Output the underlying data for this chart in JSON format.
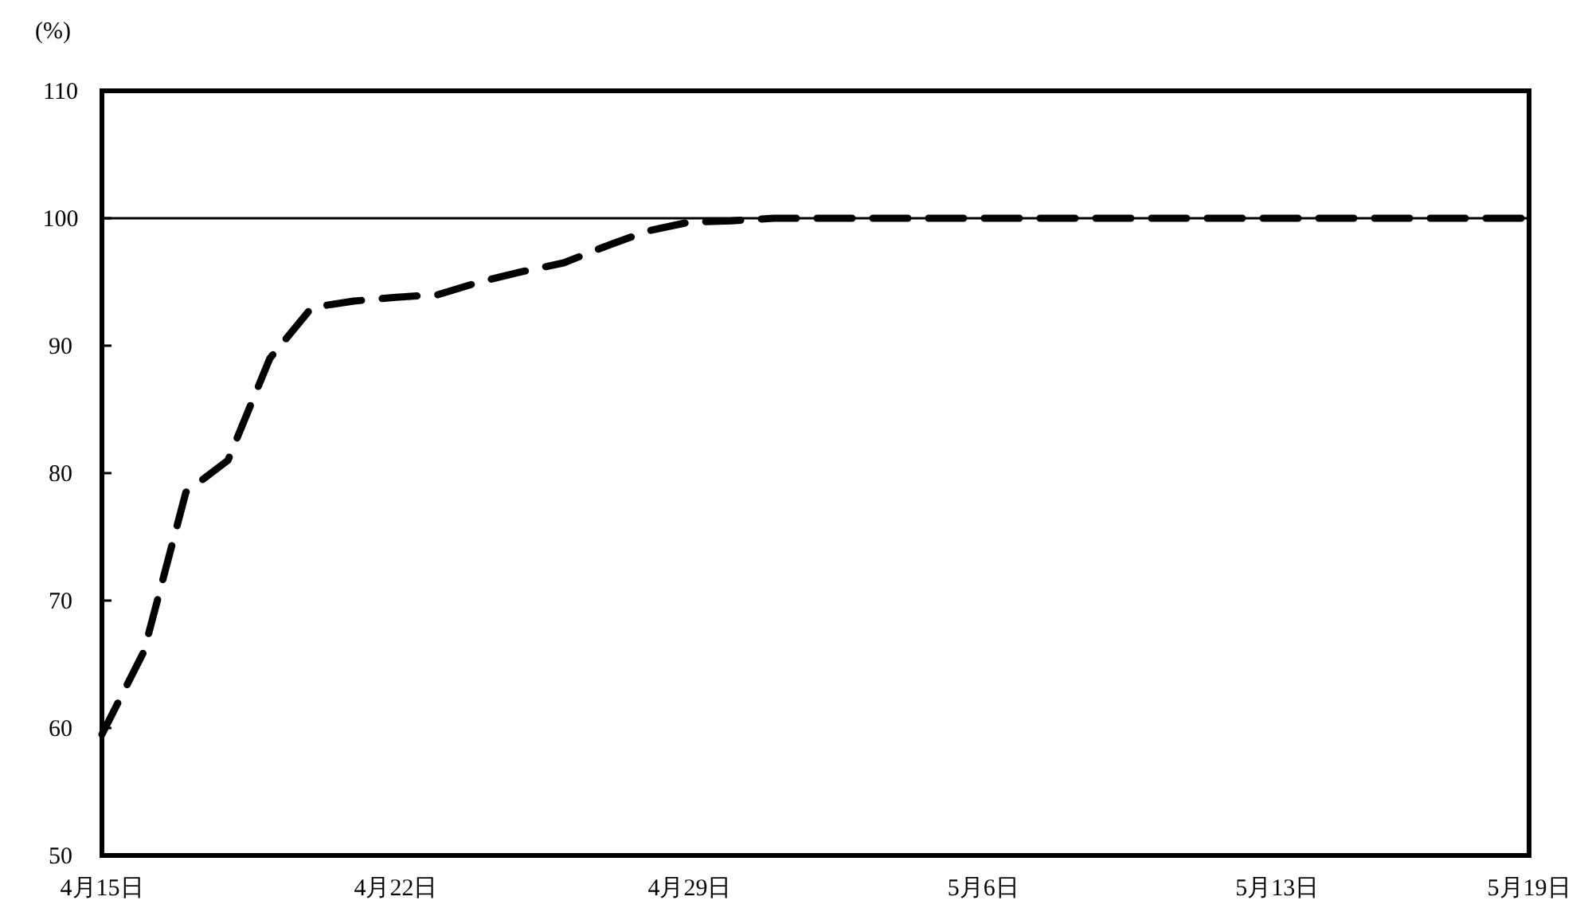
{
  "chart_data": {
    "type": "line",
    "ylabel": "(%)",
    "x": [
      "--04-15",
      "--04-16",
      "--04-17",
      "--04-18",
      "--04-19",
      "--04-20",
      "--04-21",
      "--04-22",
      "--04-23",
      "--04-24",
      "--04-25",
      "--04-26",
      "--04-27",
      "--04-28",
      "--04-29",
      "--04-30",
      "--05-01",
      "--05-02",
      "--05-03",
      "--05-04",
      "--05-05",
      "--05-06",
      "--05-07",
      "--05-08",
      "--05-09",
      "--05-10",
      "--05-11",
      "--05-12",
      "--05-13",
      "--05-14",
      "--05-15",
      "--05-16",
      "--05-17",
      "--05-18",
      "--05-19"
    ],
    "series": [
      {
        "color": "#000000",
        "values": [
          59.5,
          66,
          78.5,
          81,
          89,
          93,
          93.5,
          93.8,
          94,
          95,
          95.8,
          96.5,
          97.8,
          99,
          99.7,
          99.8,
          100,
          100,
          100,
          100,
          100,
          100,
          100,
          100,
          100,
          100,
          100,
          100,
          100,
          100,
          100,
          100,
          100,
          100,
          100
        ]
      }
    ],
    "xlim": [
      "--04-15",
      "--05-19"
    ],
    "xticks": [
      {
        "value": "--04-15",
        "label": "4月15日"
      },
      {
        "value": "--04-22",
        "label": "4月22日"
      },
      {
        "value": "--04-29",
        "label": "4月29日"
      },
      {
        "value": "--05-06",
        "label": "5月6日"
      },
      {
        "value": "--05-13",
        "label": "5月13日"
      },
      {
        "value": "--05-19",
        "label": "5月19日"
      }
    ],
    "ylim": [
      50,
      110
    ],
    "yticks": [
      50,
      60,
      70,
      80,
      90,
      100,
      110
    ],
    "ref_lines": [
      {
        "axis": "y",
        "value": 100,
        "color": "#000000"
      }
    ],
    "line_style": "dashed",
    "marker": "none",
    "grid": false
  }
}
